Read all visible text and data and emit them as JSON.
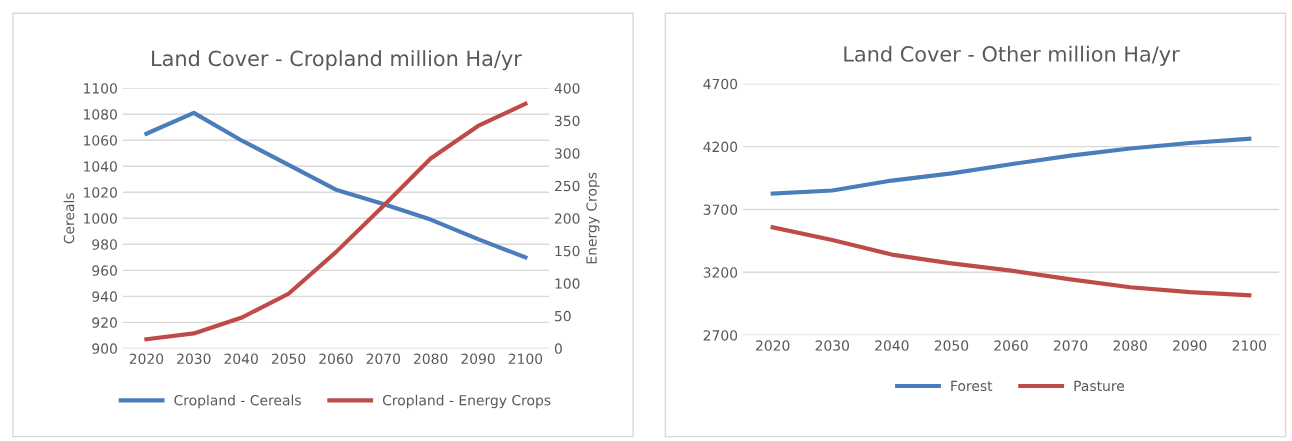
{
  "chart_data": [
    {
      "type": "line",
      "title": "Land Cover - Cropland million Ha/yr",
      "ylabel": "Cereals",
      "y2label": "Energy Crops",
      "categories": [
        "2020",
        "2030",
        "2040",
        "2050",
        "2060",
        "2070",
        "2080",
        "2090",
        "2100"
      ],
      "series": [
        {
          "name": "Cropland - Cereals",
          "color": "#4a7ebb",
          "values": [
            1065,
            1081,
            1060,
            1041,
            1022,
            1011,
            999,
            984,
            970
          ]
        },
        {
          "name": "Cropland - Energy Crops",
          "color": "#be4b48",
          "axis": "y2",
          "values": [
            14,
            23,
            47,
            84,
            148,
            219,
            292,
            342,
            376
          ]
        }
      ],
      "ylim": [
        900,
        1100
      ],
      "yticks": [
        900,
        920,
        940,
        960,
        980,
        1000,
        1020,
        1040,
        1060,
        1080,
        1100
      ],
      "y2lim": [
        0,
        400
      ],
      "y2ticks": [
        0,
        50,
        100,
        150,
        200,
        250,
        300,
        350,
        400
      ],
      "grid": "y",
      "legend": "bottom",
      "marker": "none",
      "line_style": "solid"
    },
    {
      "type": "line",
      "title": "Land Cover - Other million Ha/yr",
      "categories": [
        "2020",
        "2030",
        "2040",
        "2050",
        "2060",
        "2070",
        "2080",
        "2090",
        "2100"
      ],
      "series": [
        {
          "name": "Forest",
          "color": "#4a7ebb",
          "values": [
            3826,
            3851,
            3930,
            3987,
            4060,
            4128,
            4185,
            4229,
            4263
          ]
        },
        {
          "name": "Pasture",
          "color": "#be4b48",
          "values": [
            3558,
            3457,
            3341,
            3271,
            3213,
            3144,
            3081,
            3043,
            3018
          ]
        }
      ],
      "ylim": [
        2700,
        4700
      ],
      "yticks": [
        2700,
        3200,
        3700,
        4200,
        4700
      ],
      "grid": "y",
      "legend": "bottom",
      "marker": "none",
      "line_style": "solid"
    }
  ]
}
